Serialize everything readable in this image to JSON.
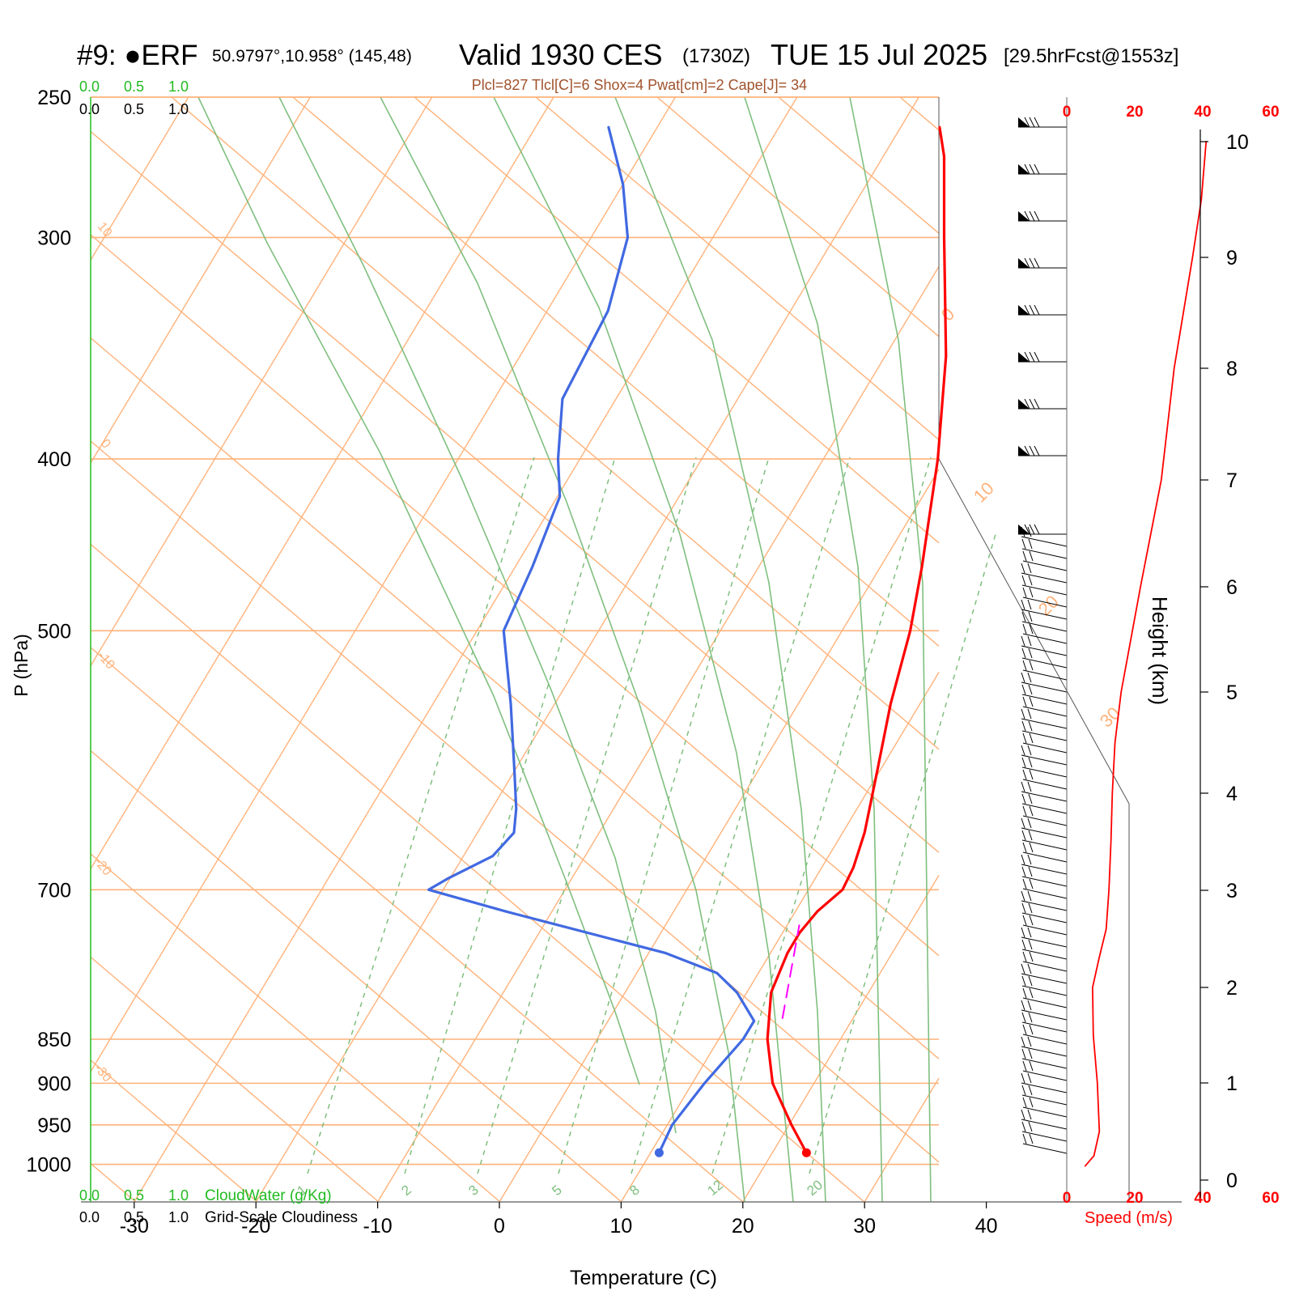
{
  "header": {
    "station": "#9: ●ERF",
    "location": "50.9797°,10.958° (145,48)",
    "valid": "Valid 1930 CES",
    "zulu": "(1730Z)",
    "date": "TUE 15 Jul 2025",
    "fcst": "[29.5hrFcst@1553z]",
    "indices": "Plcl=827 Tlcl[C]=6 Shox=4 Pwat[cm]=2 Cape[J]= 34"
  },
  "cloud_scale": {
    "top_green": [
      "0.0",
      "0.5",
      "1.0"
    ],
    "top_black": [
      "0.0",
      "0.5",
      "1.0"
    ],
    "bottom_green": [
      "0.0",
      "0.5",
      "1.0"
    ],
    "bottom_black": [
      "0.0",
      "0.5",
      "1.0"
    ],
    "cloudwater_label": "CloudWater (g/Kg)",
    "cloudiness_label": "Grid-Scale Cloudiness"
  },
  "colors": {
    "temperature": "#ff0000",
    "dewpoint": "#4169e1",
    "isotherm": "#ffb27a",
    "adiabat": "#7fbf7f",
    "parcel": "#ff00ff",
    "speed": "#ff0000"
  },
  "chart_data": {
    "type": "line",
    "xlabel": "Temperature (C)",
    "ylabel": "P (hPa)",
    "xlim": [
      -30,
      40
    ],
    "x_ticks": [
      -30,
      -20,
      -10,
      0,
      10,
      20,
      30,
      40
    ],
    "p_ticks": [
      250,
      300,
      400,
      500,
      700,
      850,
      900,
      950,
      1000
    ],
    "isotherm_labels": [
      "10",
      "0",
      "-10",
      "-20",
      "-30"
    ],
    "isotherm_right_labels": [
      "0",
      "10",
      "20",
      "30"
    ],
    "mixing_ratio_labels": [
      "1",
      "2",
      "3",
      "5",
      "8",
      "12",
      "20"
    ],
    "series": [
      {
        "name": "Temperature",
        "p": [
          985,
          950,
          900,
          850,
          800,
          760,
          740,
          720,
          700,
          680,
          650,
          600,
          550,
          500,
          460,
          400,
          350,
          300,
          270,
          260
        ],
        "values": [
          22.8,
          20.2,
          16.6,
          14.0,
          12.0,
          11.4,
          11.4,
          11.8,
          12.8,
          12.6,
          11.8,
          9.8,
          7.6,
          5.6,
          3.4,
          -0.6,
          -5.0,
          -11.0,
          -15.0,
          -16.8
        ]
      },
      {
        "name": "Dewpoint",
        "p": [
          985,
          950,
          900,
          850,
          830,
          800,
          780,
          760,
          720,
          700,
          690,
          670,
          650,
          630,
          600,
          550,
          500,
          460,
          420,
          400,
          370,
          330,
          300,
          280,
          260
        ],
        "values": [
          10.7,
          10.4,
          11.0,
          12.0,
          12.0,
          9.2,
          6.6,
          1.4,
          -13.8,
          -21.2,
          -20.2,
          -17.6,
          -17.0,
          -18.0,
          -20.0,
          -23.6,
          -27.8,
          -28.6,
          -29.8,
          -31.8,
          -34.4,
          -35.0,
          -37.0,
          -40.0,
          -44.0
        ]
      },
      {
        "name": "Parcel",
        "p": [
          827,
          733
        ],
        "values": [
          14.2,
          11.0
        ]
      }
    ],
    "height_axis": {
      "label": "Height (km)",
      "ticks": [
        0,
        1,
        2,
        3,
        4,
        5,
        6,
        7,
        8,
        9,
        10
      ]
    },
    "speed_axis": {
      "label": "Speed (m/s)",
      "ticks": [
        0,
        20,
        40,
        60
      ],
      "height_km": [
        0.14,
        0.25,
        0.5,
        1.0,
        1.5,
        2.0,
        2.3,
        2.6,
        3.0,
        3.5,
        4.0,
        4.5,
        5.0,
        6.0,
        7.0,
        8.0,
        9.0,
        9.5,
        10.0,
        10.15
      ],
      "speed_ms": [
        5.3,
        8.0,
        9.6,
        9.0,
        7.8,
        7.6,
        9.5,
        11.6,
        12.4,
        13.0,
        13.4,
        14.2,
        16.0,
        21.7,
        27.8,
        31.6,
        37.0,
        39.6,
        41.0,
        41.2
      ]
    }
  }
}
